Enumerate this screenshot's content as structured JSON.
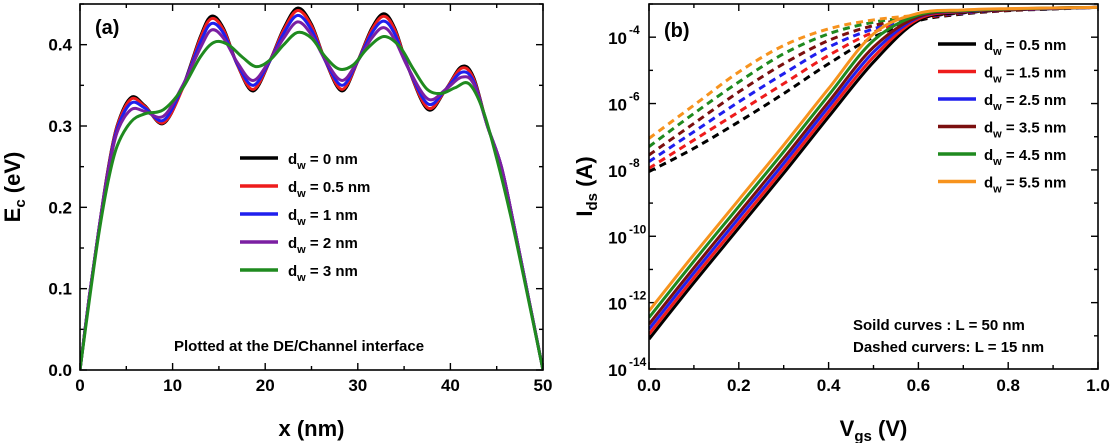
{
  "chart_data": [
    {
      "id": "a",
      "type": "line",
      "panel_label": "(a)",
      "xlabel": "x (nm)",
      "ylabel": {
        "main": "E",
        "sub": "c",
        "rest": " (eV)"
      },
      "xlim": [
        0,
        50
      ],
      "ylim": [
        0.0,
        0.45
      ],
      "xticks": [
        0,
        10,
        20,
        30,
        40,
        50
      ],
      "xtick_labels": [
        "0",
        "10",
        "20",
        "30",
        "40",
        "50"
      ],
      "yticks": [
        0.0,
        0.1,
        0.2,
        0.3,
        0.4
      ],
      "ytick_labels": [
        "0.0",
        "0.1",
        "0.2",
        "0.3",
        "0.4"
      ],
      "annotation": "Plotted at the DE/Channel interface",
      "series": [
        {
          "name": "dw0",
          "legend": {
            "main": "d",
            "sub": "w",
            "rest": " = 0 nm"
          },
          "color": "#000000",
          "x": [
            0,
            1,
            2,
            3,
            4,
            5.5,
            7,
            9,
            11,
            13,
            14.2,
            15.5,
            17,
            18.7,
            20.5,
            22,
            23.5,
            25,
            26.5,
            28.3,
            30,
            31.5,
            32.8,
            34,
            35.5,
            37.6,
            39.5,
            41.2,
            42.5,
            44,
            45.5,
            47,
            48.5,
            50
          ],
          "y": [
            0.0,
            0.09,
            0.17,
            0.245,
            0.3,
            0.335,
            0.325,
            0.303,
            0.345,
            0.41,
            0.435,
            0.42,
            0.375,
            0.343,
            0.38,
            0.42,
            0.445,
            0.425,
            0.38,
            0.343,
            0.38,
            0.42,
            0.438,
            0.42,
            0.37,
            0.32,
            0.345,
            0.373,
            0.36,
            0.3,
            0.25,
            0.17,
            0.085,
            0.0
          ]
        },
        {
          "name": "dw05",
          "legend": {
            "main": "d",
            "sub": "w",
            "rest": " = 0.5 nm"
          },
          "color": "#ee1c1c",
          "x": [
            0,
            1,
            2,
            3,
            4,
            5.5,
            7,
            9,
            11,
            13,
            14.2,
            15.5,
            17,
            18.7,
            20.5,
            22,
            23.5,
            25,
            26.5,
            28.3,
            30,
            31.5,
            32.8,
            34,
            35.5,
            37.6,
            39.5,
            41.2,
            42.5,
            44,
            45.5,
            47,
            48.5,
            50
          ],
          "y": [
            0.0,
            0.09,
            0.17,
            0.244,
            0.299,
            0.333,
            0.324,
            0.304,
            0.344,
            0.408,
            0.432,
            0.418,
            0.375,
            0.345,
            0.38,
            0.418,
            0.442,
            0.423,
            0.38,
            0.345,
            0.38,
            0.418,
            0.435,
            0.418,
            0.37,
            0.322,
            0.345,
            0.371,
            0.358,
            0.3,
            0.25,
            0.17,
            0.085,
            0.0
          ]
        },
        {
          "name": "dw1",
          "legend": {
            "main": "d",
            "sub": "w",
            "rest": " = 1 nm"
          },
          "color": "#1f1fee",
          "x": [
            0,
            1,
            2,
            3,
            4,
            5.5,
            7,
            9,
            11,
            13,
            14.2,
            15.5,
            17,
            18.7,
            20.5,
            22,
            23.5,
            25,
            26.5,
            28.3,
            30,
            31.5,
            32.8,
            34,
            35.5,
            37.6,
            39.5,
            41.2,
            42.5,
            44,
            45.5,
            47,
            48.5,
            50
          ],
          "y": [
            0.0,
            0.09,
            0.17,
            0.242,
            0.296,
            0.328,
            0.322,
            0.307,
            0.346,
            0.403,
            0.426,
            0.414,
            0.376,
            0.35,
            0.38,
            0.414,
            0.436,
            0.418,
            0.38,
            0.35,
            0.38,
            0.414,
            0.429,
            0.413,
            0.37,
            0.327,
            0.345,
            0.366,
            0.355,
            0.3,
            0.25,
            0.17,
            0.085,
            0.0
          ]
        },
        {
          "name": "dw2",
          "legend": {
            "main": "d",
            "sub": "w",
            "rest": " = 2 nm"
          },
          "color": "#7b1fa2",
          "x": [
            0,
            1,
            2,
            3,
            4,
            5.5,
            7,
            9,
            11,
            13,
            14.2,
            15.5,
            17,
            18.7,
            20.5,
            22,
            23.5,
            25,
            26.5,
            28.3,
            30,
            31.5,
            32.8,
            34,
            35.5,
            37.6,
            39.5,
            41.2,
            42.5,
            44,
            45.5,
            47,
            48.5,
            50
          ],
          "y": [
            0.0,
            0.09,
            0.17,
            0.24,
            0.292,
            0.32,
            0.318,
            0.312,
            0.348,
            0.396,
            0.418,
            0.408,
            0.378,
            0.356,
            0.381,
            0.408,
            0.428,
            0.412,
            0.381,
            0.356,
            0.38,
            0.408,
            0.421,
            0.406,
            0.37,
            0.333,
            0.345,
            0.36,
            0.352,
            0.3,
            0.25,
            0.17,
            0.085,
            0.0
          ]
        },
        {
          "name": "dw3",
          "legend": {
            "main": "d",
            "sub": "w",
            "rest": " = 3 nm"
          },
          "color": "#1f8a1f",
          "x": [
            0,
            1,
            2,
            3,
            4,
            5.5,
            7,
            9,
            11,
            13,
            14.5,
            16,
            17.5,
            19,
            20.5,
            22,
            23.5,
            25,
            26.5,
            28,
            29.5,
            31,
            32.8,
            34.5,
            36,
            37.5,
            39,
            40.5,
            42,
            43.5,
            45,
            46.5,
            48,
            50
          ],
          "y": [
            0.0,
            0.085,
            0.165,
            0.23,
            0.275,
            0.305,
            0.315,
            0.32,
            0.345,
            0.385,
            0.403,
            0.4,
            0.385,
            0.373,
            0.381,
            0.4,
            0.415,
            0.408,
            0.385,
            0.37,
            0.375,
            0.395,
            0.41,
            0.398,
            0.37,
            0.345,
            0.34,
            0.347,
            0.352,
            0.32,
            0.26,
            0.19,
            0.11,
            0.0
          ]
        }
      ]
    },
    {
      "id": "b",
      "type": "line",
      "panel_label": "(b)",
      "xlabel": {
        "main": "V",
        "sub": "gs",
        "rest": " (V)"
      },
      "ylabel": {
        "main": "I",
        "sub": "ds",
        "rest": " (A)"
      },
      "xlim": [
        0.0,
        1.0
      ],
      "ylim_log10": [
        -14,
        -3
      ],
      "yscale": "log",
      "xticks": [
        0.0,
        0.2,
        0.4,
        0.6,
        0.8,
        1.0
      ],
      "xtick_labels": [
        "0.0",
        "0.2",
        "0.4",
        "0.6",
        "0.8",
        "1.0"
      ],
      "yticks_log10": [
        -14,
        -12,
        -10,
        -8,
        -6,
        -4
      ],
      "ytick_labels": [
        {
          "base": "10",
          "exp": "-14"
        },
        {
          "base": "10",
          "exp": "-12"
        },
        {
          "base": "10",
          "exp": "-10"
        },
        {
          "base": "10",
          "exp": "-8"
        },
        {
          "base": "10",
          "exp": "-6"
        },
        {
          "base": "10",
          "exp": "-4"
        }
      ],
      "annotations": [
        "Soild curves : L = 50 nm",
        "Dashed curvers: L =  15 nm"
      ],
      "x": [
        0.0,
        0.1,
        0.2,
        0.3,
        0.4,
        0.5,
        0.6,
        0.7,
        0.8,
        0.9,
        1.0
      ],
      "series": [
        {
          "name": "dw05",
          "legend": {
            "main": "d",
            "sub": "w",
            "rest": " = 0.5 nm"
          },
          "color": "#000000",
          "solid_log10": [
            -13.1,
            -11.4,
            -9.75,
            -8.1,
            -6.4,
            -4.75,
            -3.5,
            -3.25,
            -3.18,
            -3.14,
            -3.1
          ],
          "dashed_log10": [
            -8.05,
            -7.35,
            -6.55,
            -5.7,
            -4.8,
            -4.0,
            -3.5,
            -3.3,
            -3.2,
            -3.15,
            -3.1
          ]
        },
        {
          "name": "dw15",
          "legend": {
            "main": "d",
            "sub": "w",
            "rest": " = 1.5 nm"
          },
          "color": "#ee1c1c",
          "solid_log10": [
            -12.95,
            -11.25,
            -9.6,
            -7.95,
            -6.25,
            -4.6,
            -3.45,
            -3.23,
            -3.17,
            -3.13,
            -3.1
          ],
          "dashed_log10": [
            -7.95,
            -7.1,
            -6.25,
            -5.4,
            -4.55,
            -3.85,
            -3.45,
            -3.28,
            -3.19,
            -3.14,
            -3.1
          ]
        },
        {
          "name": "dw25",
          "legend": {
            "main": "d",
            "sub": "w",
            "rest": " = 2.5 nm"
          },
          "color": "#1f1fee",
          "solid_log10": [
            -12.8,
            -11.1,
            -9.45,
            -7.8,
            -6.1,
            -4.45,
            -3.4,
            -3.22,
            -3.16,
            -3.13,
            -3.1
          ],
          "dashed_log10": [
            -7.75,
            -6.85,
            -5.95,
            -5.1,
            -4.3,
            -3.75,
            -3.42,
            -3.27,
            -3.18,
            -3.14,
            -3.1
          ]
        },
        {
          "name": "dw35",
          "legend": {
            "main": "d",
            "sub": "w",
            "rest": " = 3.5 nm"
          },
          "color": "#7b0f0f",
          "solid_log10": [
            -12.65,
            -10.95,
            -9.3,
            -7.65,
            -5.95,
            -4.3,
            -3.38,
            -3.21,
            -3.16,
            -3.12,
            -3.1
          ],
          "dashed_log10": [
            -7.55,
            -6.6,
            -5.65,
            -4.8,
            -4.1,
            -3.65,
            -3.4,
            -3.26,
            -3.18,
            -3.13,
            -3.1
          ]
        },
        {
          "name": "dw45",
          "legend": {
            "main": "d",
            "sub": "w",
            "rest": " = 4.5 nm"
          },
          "color": "#1f8a1f",
          "solid_log10": [
            -12.45,
            -10.75,
            -9.1,
            -7.45,
            -5.75,
            -4.1,
            -3.33,
            -3.2,
            -3.15,
            -3.12,
            -3.1
          ],
          "dashed_log10": [
            -7.3,
            -6.3,
            -5.35,
            -4.5,
            -3.9,
            -3.55,
            -3.37,
            -3.25,
            -3.17,
            -3.13,
            -3.1
          ]
        },
        {
          "name": "dw55",
          "legend": {
            "main": "d",
            "sub": "w",
            "rest": " = 5.5 nm"
          },
          "color": "#f7931e",
          "solid_log10": [
            -12.25,
            -10.55,
            -8.9,
            -7.25,
            -5.55,
            -3.9,
            -3.28,
            -3.18,
            -3.14,
            -3.12,
            -3.1
          ],
          "dashed_log10": [
            -7.05,
            -6.05,
            -5.05,
            -4.25,
            -3.75,
            -3.48,
            -3.34,
            -3.24,
            -3.17,
            -3.13,
            -3.1
          ]
        }
      ]
    }
  ]
}
